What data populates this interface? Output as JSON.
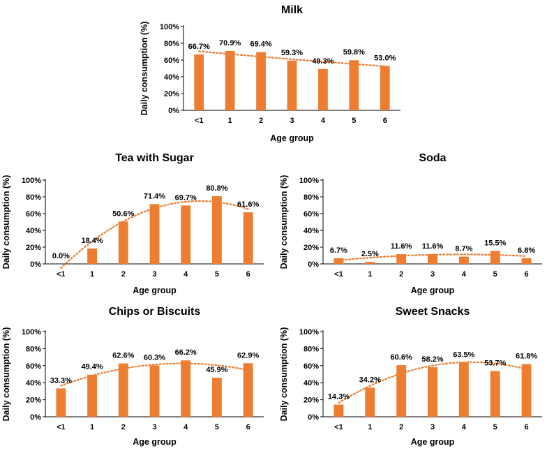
{
  "colors": {
    "bar": "#ED7D31",
    "trend": "#ED7D31",
    "axis": "#000000"
  },
  "chart_data": [
    {
      "id": "milk",
      "type": "bar",
      "title": "Milk",
      "xlabel": "Age group",
      "ylabel": "Daily consumption (%)",
      "categories": [
        "<1",
        "1",
        "2",
        "3",
        "4",
        "5",
        "6"
      ],
      "values": [
        66.7,
        70.9,
        69.4,
        59.3,
        49.3,
        59.8,
        53.0
      ],
      "data_labels": [
        "66.7%",
        "70.9%",
        "69.4%",
        "59.3%",
        "49.3%",
        "59.8%",
        "53.0%"
      ],
      "yticks": [
        "0%",
        "20%",
        "40%",
        "60%",
        "80%",
        "100%"
      ],
      "ylim": [
        0,
        100
      ],
      "trendline": "polynomial",
      "grid": false
    },
    {
      "id": "tea",
      "type": "bar",
      "title": "Tea with Sugar",
      "xlabel": "Age group",
      "ylabel": "Daily consumption (%)",
      "categories": [
        "<1",
        "1",
        "2",
        "3",
        "4",
        "5",
        "6"
      ],
      "values": [
        0.0,
        18.4,
        50.6,
        71.4,
        69.7,
        80.8,
        61.6
      ],
      "data_labels": [
        "0.0%",
        "18.4%",
        "50.6%",
        "71.4%",
        "69.7%",
        "80.8%",
        "61.6%"
      ],
      "yticks": [
        "0%",
        "20%",
        "40%",
        "60%",
        "80%",
        "100%"
      ],
      "ylim": [
        0,
        100
      ],
      "trendline": "polynomial",
      "grid": false
    },
    {
      "id": "soda",
      "type": "bar",
      "title": "Soda",
      "xlabel": "Age group",
      "ylabel": "Daily consumption (%)",
      "categories": [
        "<1",
        "1",
        "2",
        "3",
        "4",
        "5",
        "6"
      ],
      "values": [
        6.7,
        2.5,
        11.6,
        11.6,
        8.7,
        15.5,
        6.8
      ],
      "data_labels": [
        "6.7%",
        "2.5%",
        "11.6%",
        "11.6%",
        "8.7%",
        "15.5%",
        "6.8%"
      ],
      "yticks": [
        "0%",
        "20%",
        "40%",
        "60%",
        "80%",
        "100%"
      ],
      "ylim": [
        0,
        100
      ],
      "trendline": "polynomial",
      "grid": false
    },
    {
      "id": "chips",
      "type": "bar",
      "title": "Chips or Biscuits",
      "xlabel": "Age group",
      "ylabel": "Daily consumption (%)",
      "categories": [
        "<1",
        "1",
        "2",
        "3",
        "4",
        "5",
        "6"
      ],
      "values": [
        33.3,
        49.4,
        62.6,
        60.3,
        66.2,
        45.9,
        62.9
      ],
      "data_labels": [
        "33.3%",
        "49.4%",
        "62.6%",
        "60.3%",
        "66.2%",
        "45.9%",
        "62.9%"
      ],
      "yticks": [
        "0%",
        "20%",
        "40%",
        "60%",
        "80%",
        "100%"
      ],
      "ylim": [
        0,
        100
      ],
      "trendline": "polynomial",
      "grid": false
    },
    {
      "id": "sweet",
      "type": "bar",
      "title": "Sweet Snacks",
      "xlabel": "Age group",
      "ylabel": "Daily consumption (%)",
      "categories": [
        "<1",
        "1",
        "2",
        "3",
        "4",
        "5",
        "6"
      ],
      "values": [
        14.3,
        34.2,
        60.6,
        58.2,
        63.5,
        53.7,
        61.8
      ],
      "data_labels": [
        "14.3%",
        "34.2%",
        "60.6%",
        "58.2%",
        "63.5%",
        "53.7%",
        "61.8%"
      ],
      "yticks": [
        "0%",
        "20%",
        "40%",
        "60%",
        "80%",
        "100%"
      ],
      "ylim": [
        0,
        100
      ],
      "trendline": "polynomial",
      "grid": false
    }
  ]
}
